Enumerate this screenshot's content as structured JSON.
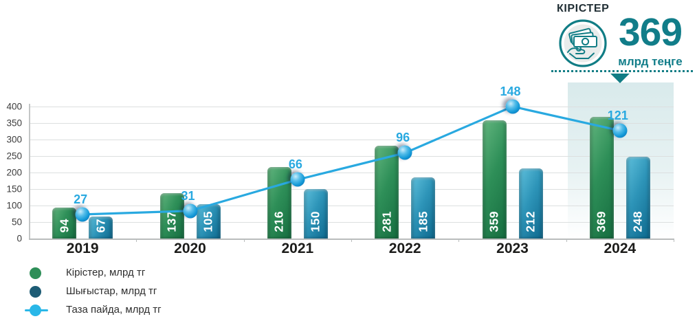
{
  "callout": {
    "title": "КІРІСТЕР",
    "value": "369",
    "unit": "млрд теңге",
    "icon": "money-in-hand-icon",
    "accent_color": "#117d85"
  },
  "chart_data": {
    "type": "bar",
    "title": "",
    "categories": [
      "2019",
      "2020",
      "2021",
      "2022",
      "2023",
      "2024"
    ],
    "series": [
      {
        "name": "Кірістер, млрд тг",
        "type": "bar",
        "color": "#2e8f58",
        "color_light": "#63b67f",
        "color_dark": "#156c3f",
        "values": [
          94,
          137,
          216,
          281,
          359,
          369
        ]
      },
      {
        "name": "Шығыстар, млрд тг",
        "type": "bar",
        "color": "#2d94b8",
        "color_light": "#5fc0dc",
        "color_dark": "#0d678c",
        "values": [
          67,
          105,
          150,
          185,
          212,
          248
        ]
      },
      {
        "name": "Таза пайда, млрд тг",
        "type": "line",
        "color": "#29a9e0",
        "values": [
          27,
          31,
          66,
          96,
          148,
          121
        ]
      }
    ],
    "xlabel": "",
    "ylabel": "",
    "ylim": [
      0,
      400
    ],
    "yticks": [
      0,
      50,
      100,
      150,
      200,
      250,
      300,
      350,
      400
    ],
    "line_axis_max": 148,
    "grid": true,
    "legend_position": "bottom-left",
    "highlight_category": "2024",
    "legend_swatch_colors": {
      "income": "#2e8f58",
      "expenses": "#1d5c75",
      "profit": "#29b7e8"
    }
  }
}
